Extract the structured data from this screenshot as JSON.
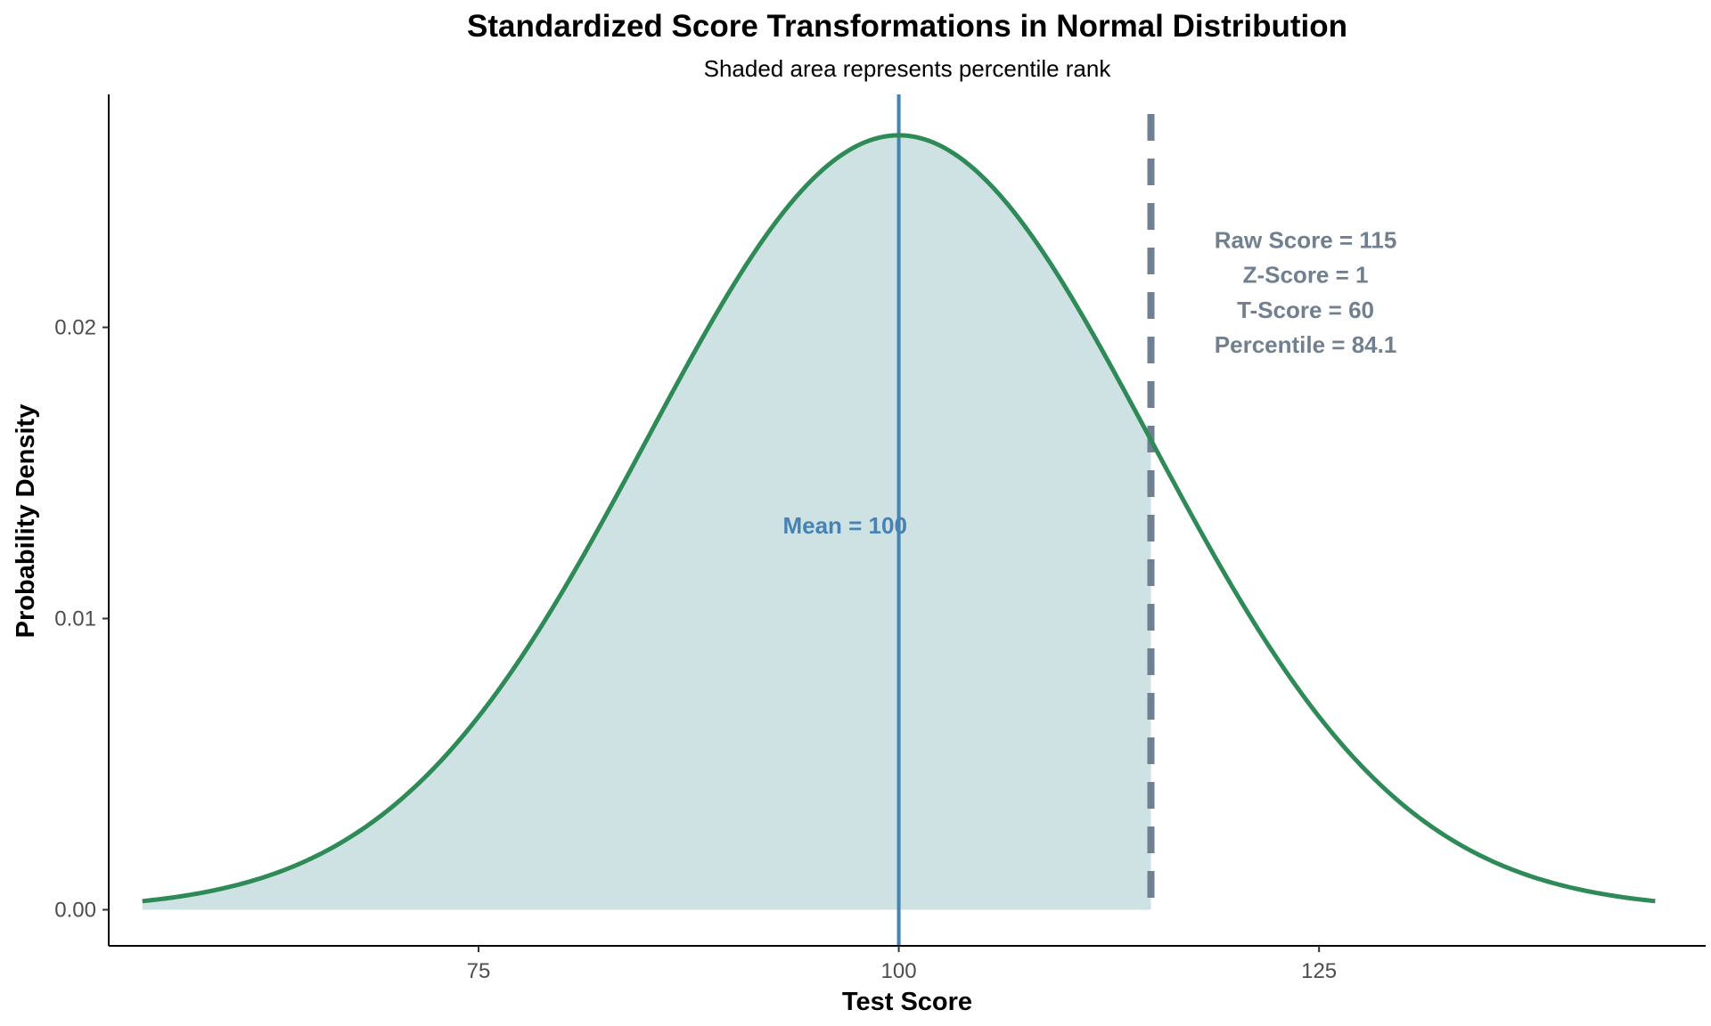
{
  "chart_data": {
    "type": "area",
    "title": "Standardized Score Transformations in Normal Distribution",
    "subtitle": "Shaded area represents percentile rank",
    "xlabel": "Test Score",
    "ylabel": "Probability Density",
    "xlim": [
      53,
      148
    ],
    "ylim": [
      -0.00124,
      0.028
    ],
    "x_ticks": [
      75,
      100,
      125
    ],
    "x_tick_labels": [
      "75",
      "100",
      "125"
    ],
    "y_ticks": [
      0,
      0.01,
      0.02
    ],
    "y_tick_labels": [
      "0.00",
      "0.01",
      "0.02"
    ],
    "grid": false,
    "distribution": {
      "mean": 100,
      "sd": 15,
      "x_min": 55,
      "x_max": 145
    },
    "shaded_region": {
      "from": 55,
      "to": 115
    },
    "mean_line": {
      "x": 100,
      "label": "Mean = 100"
    },
    "score_line": {
      "x": 115,
      "style": "dashed",
      "labels": [
        "Raw Score = 115",
        "Z-Score = 1",
        "T-Score = 60",
        "Percentile = 84.1"
      ]
    },
    "colors": {
      "curve": "#2e8b57",
      "fill": "#cfe2e3",
      "mean_line": "#4682b4",
      "score_line": "#708090",
      "axis": "#000000"
    }
  }
}
